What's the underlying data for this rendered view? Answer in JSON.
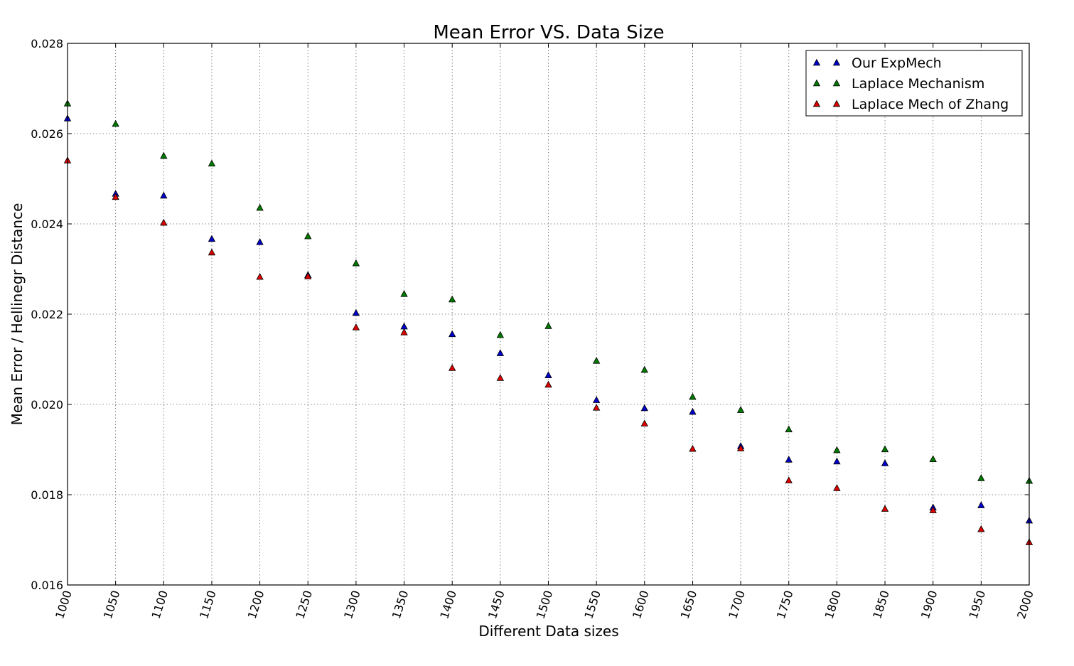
{
  "chart_data": {
    "type": "scatter",
    "title": "Mean Error VS. Data Size",
    "xlabel": "Different Data sizes",
    "ylabel": "Mean Error / Hellinegr Distance",
    "xlim": [
      1000,
      2000
    ],
    "ylim": [
      0.016,
      0.028
    ],
    "x": [
      1000,
      1050,
      1100,
      1150,
      1200,
      1250,
      1300,
      1350,
      1400,
      1450,
      1500,
      1550,
      1600,
      1650,
      1700,
      1750,
      1800,
      1850,
      1900,
      1950,
      2000
    ],
    "x_tick_labels": [
      "1000",
      "1050",
      "1100",
      "1150",
      "1200",
      "1250",
      "1300",
      "1350",
      "1400",
      "1450",
      "1500",
      "1550",
      "1600",
      "1650",
      "1700",
      "1750",
      "1800",
      "1850",
      "1900",
      "1950",
      "2000"
    ],
    "y_ticks": [
      0.016,
      0.018,
      0.02,
      0.022,
      0.024,
      0.026,
      0.028
    ],
    "y_tick_labels": [
      "0.016",
      "0.018",
      "0.020",
      "0.022",
      "0.024",
      "0.026",
      "0.028"
    ],
    "grid": true,
    "legend_position": "top-right",
    "series": [
      {
        "name": "Our ExpMech",
        "color": "#0000cc",
        "marker": "triangle-up",
        "values": [
          0.02634,
          0.02467,
          0.02463,
          0.02367,
          0.0236,
          0.02287,
          0.02203,
          0.02173,
          0.02156,
          0.02114,
          0.02065,
          0.0201,
          0.01992,
          0.01984,
          0.01908,
          0.01878,
          0.01874,
          0.0187,
          0.01772,
          0.01777,
          0.01743
        ]
      },
      {
        "name": "Laplace Mechanism",
        "color": "#007a00",
        "marker": "triangle-up",
        "values": [
          0.02667,
          0.02622,
          0.02551,
          0.02534,
          0.02436,
          0.02373,
          0.02313,
          0.02245,
          0.02233,
          0.02154,
          0.02174,
          0.02097,
          0.02077,
          0.02017,
          0.01988,
          0.01945,
          0.01899,
          0.01901,
          0.01879,
          0.01837,
          0.01831
        ]
      },
      {
        "name": "Laplace Mech of Zhang",
        "color": "#dd0000",
        "marker": "triangle-up",
        "values": [
          0.02541,
          0.0246,
          0.02403,
          0.02337,
          0.02283,
          0.02284,
          0.02171,
          0.0216,
          0.02081,
          0.02059,
          0.02044,
          0.01993,
          0.01958,
          0.01902,
          0.01903,
          0.01832,
          0.01815,
          0.01769,
          0.01766,
          0.01724,
          0.01695
        ]
      }
    ]
  }
}
